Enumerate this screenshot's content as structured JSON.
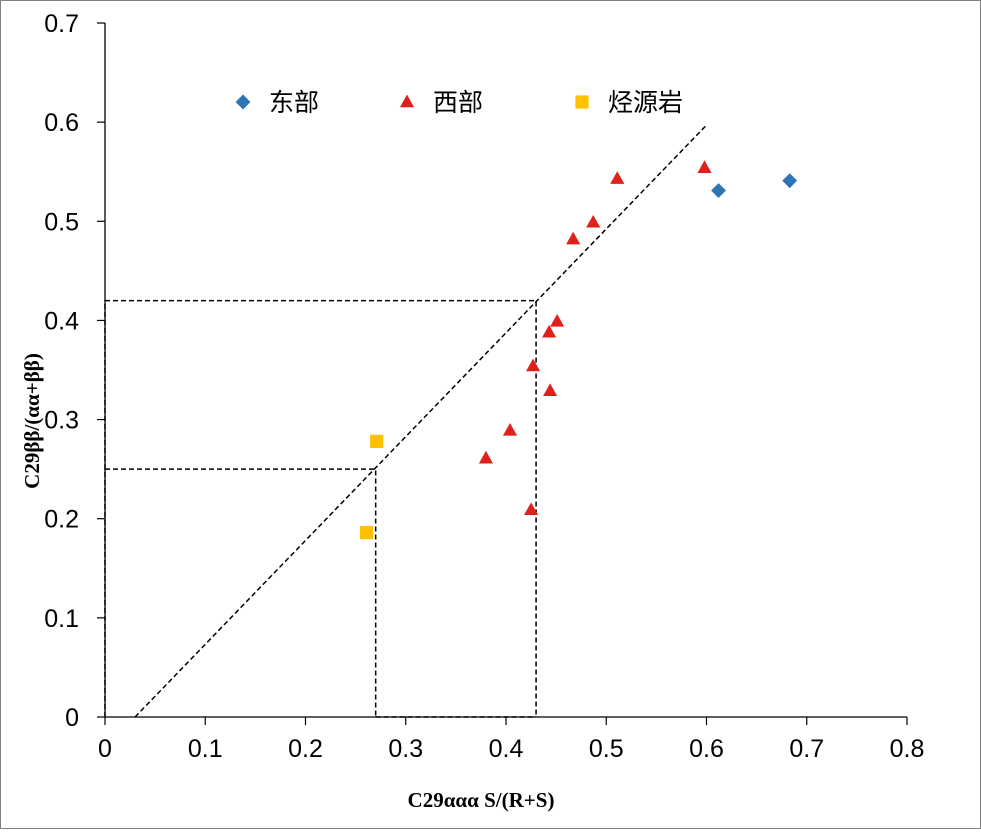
{
  "chart_data": {
    "type": "scatter",
    "xlabel": "C29ααα S/(R+S)",
    "ylabel": "C29ββ/(αα+ββ)",
    "xlim": [
      0,
      0.8
    ],
    "ylim": [
      0,
      0.7
    ],
    "x_ticks": [
      "0",
      "0.1",
      "0.2",
      "0.3",
      "0.4",
      "0.5",
      "0.6",
      "0.7",
      "0.8"
    ],
    "y_ticks": [
      "0",
      "0.1",
      "0.2",
      "0.3",
      "0.4",
      "0.5",
      "0.6",
      "0.7"
    ],
    "grid": false,
    "legend_position": "top",
    "series": [
      {
        "name": "东部",
        "marker": "diamond",
        "color": "#2e75b6",
        "points": [
          {
            "x": 0.612,
            "y": 0.531
          },
          {
            "x": 0.683,
            "y": 0.541
          }
        ]
      },
      {
        "name": "西部",
        "marker": "triangle",
        "color": "#e0201b",
        "points": [
          {
            "x": 0.511,
            "y": 0.543
          },
          {
            "x": 0.598,
            "y": 0.554
          },
          {
            "x": 0.487,
            "y": 0.499
          },
          {
            "x": 0.467,
            "y": 0.482
          },
          {
            "x": 0.451,
            "y": 0.399
          },
          {
            "x": 0.443,
            "y": 0.388
          },
          {
            "x": 0.427,
            "y": 0.354
          },
          {
            "x": 0.444,
            "y": 0.329
          },
          {
            "x": 0.404,
            "y": 0.289
          },
          {
            "x": 0.38,
            "y": 0.261
          },
          {
            "x": 0.425,
            "y": 0.209
          }
        ]
      },
      {
        "name": "烃源岩",
        "marker": "square",
        "color": "#ffc000",
        "points": [
          {
            "x": 0.271,
            "y": 0.278
          },
          {
            "x": 0.261,
            "y": 0.186
          }
        ]
      }
    ],
    "reference_lines": [
      {
        "style": "dashed",
        "points": [
          {
            "x": 0.03,
            "y": 0
          },
          {
            "x": 0.6,
            "y": 0.597
          }
        ]
      },
      {
        "style": "dashed",
        "points": [
          {
            "x": 0,
            "y": 0.42
          },
          {
            "x": 0.43,
            "y": 0.42
          },
          {
            "x": 0.43,
            "y": 0
          }
        ]
      },
      {
        "style": "dashed",
        "points": [
          {
            "x": 0,
            "y": 0.25
          },
          {
            "x": 0.27,
            "y": 0.25
          },
          {
            "x": 0.27,
            "y": 0
          }
        ]
      },
      {
        "style": "dashed",
        "points": [
          {
            "x": 0,
            "y": 0
          },
          {
            "x": 0,
            "y": 0.42
          }
        ]
      },
      {
        "style": "dashed",
        "points": [
          {
            "x": 0.27,
            "y": 0
          },
          {
            "x": 0.43,
            "y": 0
          }
        ]
      }
    ]
  }
}
